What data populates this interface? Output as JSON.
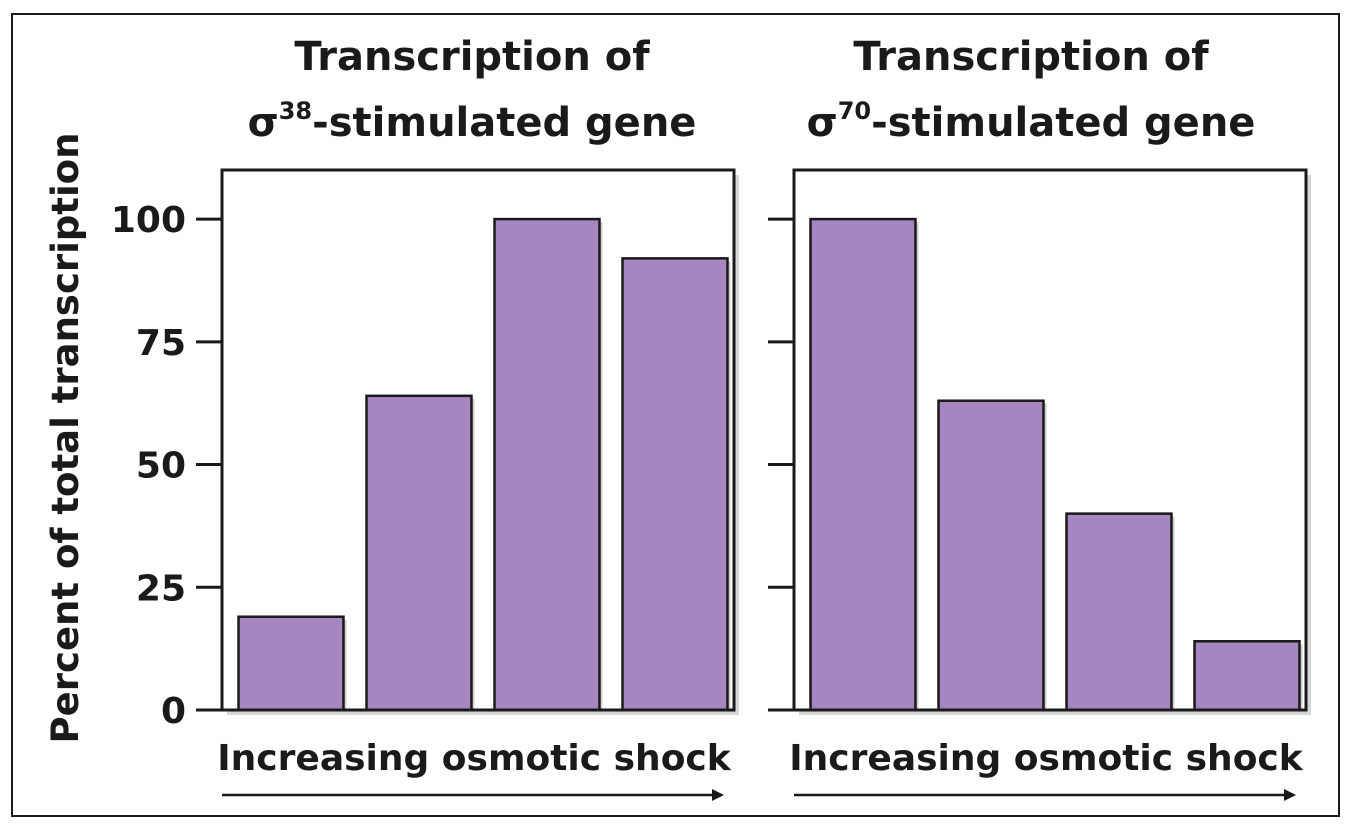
{
  "y_axis_label": "Percent of total transcription",
  "chart_data": [
    {
      "type": "bar",
      "title_line1": "Transcription of",
      "title_sigma": "σ",
      "title_superscript": "38",
      "title_suffix": "-stimulated gene",
      "xlabel": "Increasing osmotic shock",
      "ylabel": "Percent of total transcription",
      "yticks": [
        0,
        25,
        50,
        75,
        100
      ],
      "ylim": [
        0,
        110
      ],
      "values": [
        19,
        64,
        100,
        92
      ],
      "bar_color": "#a586c0",
      "grid": false
    },
    {
      "type": "bar",
      "title_line1": "Transcription of",
      "title_sigma": "σ",
      "title_superscript": "70",
      "title_suffix": "-stimulated gene",
      "xlabel": "Increasing osmotic shock",
      "ylabel": "Percent of total transcription",
      "yticks": [
        0,
        25,
        50,
        75,
        100
      ],
      "ylim": [
        0,
        110
      ],
      "values": [
        100,
        63,
        40,
        14
      ],
      "bar_color": "#a586c0",
      "grid": false
    }
  ]
}
